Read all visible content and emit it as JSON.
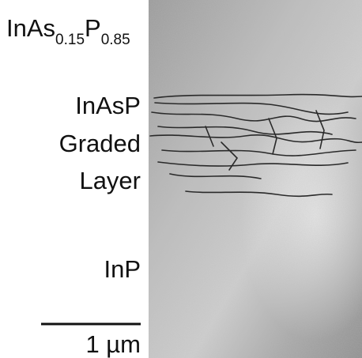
{
  "labels": {
    "formula": {
      "part1": "InAs",
      "sub1": "0.15",
      "part2": "P",
      "sub2": "0.85"
    },
    "graded": [
      "InAsP",
      "Graded",
      "Layer"
    ],
    "substrate": "InP",
    "scale_bar": "1 µm"
  }
}
